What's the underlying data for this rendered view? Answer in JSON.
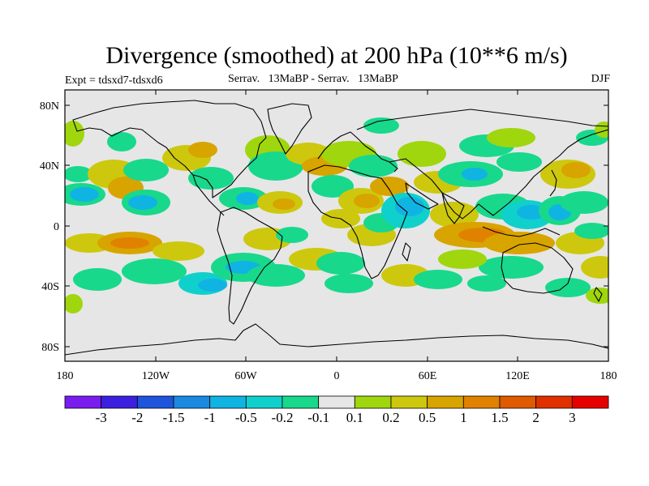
{
  "title": "Divergence (smoothed) at 200 hPa (10**6 m/s)",
  "experiment": "Expt = tdsxd7-tdsxd6",
  "subtitle": "Serrav.   13MaBP - Serrav.   13MaBP",
  "season": "DJF",
  "colors": {
    "background": "#e6e6e6",
    "neg": [
      "#7a1cf0",
      "#3c20e0",
      "#1e55dc",
      "#1a8ae0",
      "#10b4e2",
      "#10d0cc",
      "#18d88c"
    ],
    "neg_labels": [
      "-3",
      "-2",
      "-1.5",
      "-1",
      "-0.5",
      "-0.2",
      "-0.1"
    ],
    "pos": [
      "#a0d60e",
      "#cdc80e",
      "#d8a400",
      "#e08200",
      "#e05a00",
      "#e03000",
      "#e60000"
    ],
    "pos_labels": [
      "0.1",
      "0.2",
      "0.5",
      "1",
      "1.5",
      "2",
      "3"
    ]
  },
  "chart_data": {
    "type": "map",
    "projection": "cylindrical equidistant",
    "lon_range": [
      -180,
      180
    ],
    "lat_range": [
      -90,
      90
    ],
    "x_ticks": [
      "180",
      "120W",
      "60W",
      "0",
      "60E",
      "120E",
      "180"
    ],
    "y_ticks": [
      "80N",
      "40N",
      "0",
      "40S",
      "80S"
    ],
    "colorbar": {
      "colors": [
        "#7a1cf0",
        "#3c20e0",
        "#1e55dc",
        "#1a8ae0",
        "#10b4e2",
        "#10d0cc",
        "#18d88c",
        "#e6e6e6",
        "#a0d60e",
        "#cdc80e",
        "#d8a400",
        "#e08200",
        "#e05a00",
        "#e03000",
        "#e60000"
      ],
      "labels": [
        "-3",
        "-2",
        "-1.5",
        "-1",
        "-0.5",
        "-0.2",
        "-0.1",
        "0.1",
        "0.2",
        "0.5",
        "1",
        "1.5",
        "2",
        "3"
      ]
    }
  }
}
